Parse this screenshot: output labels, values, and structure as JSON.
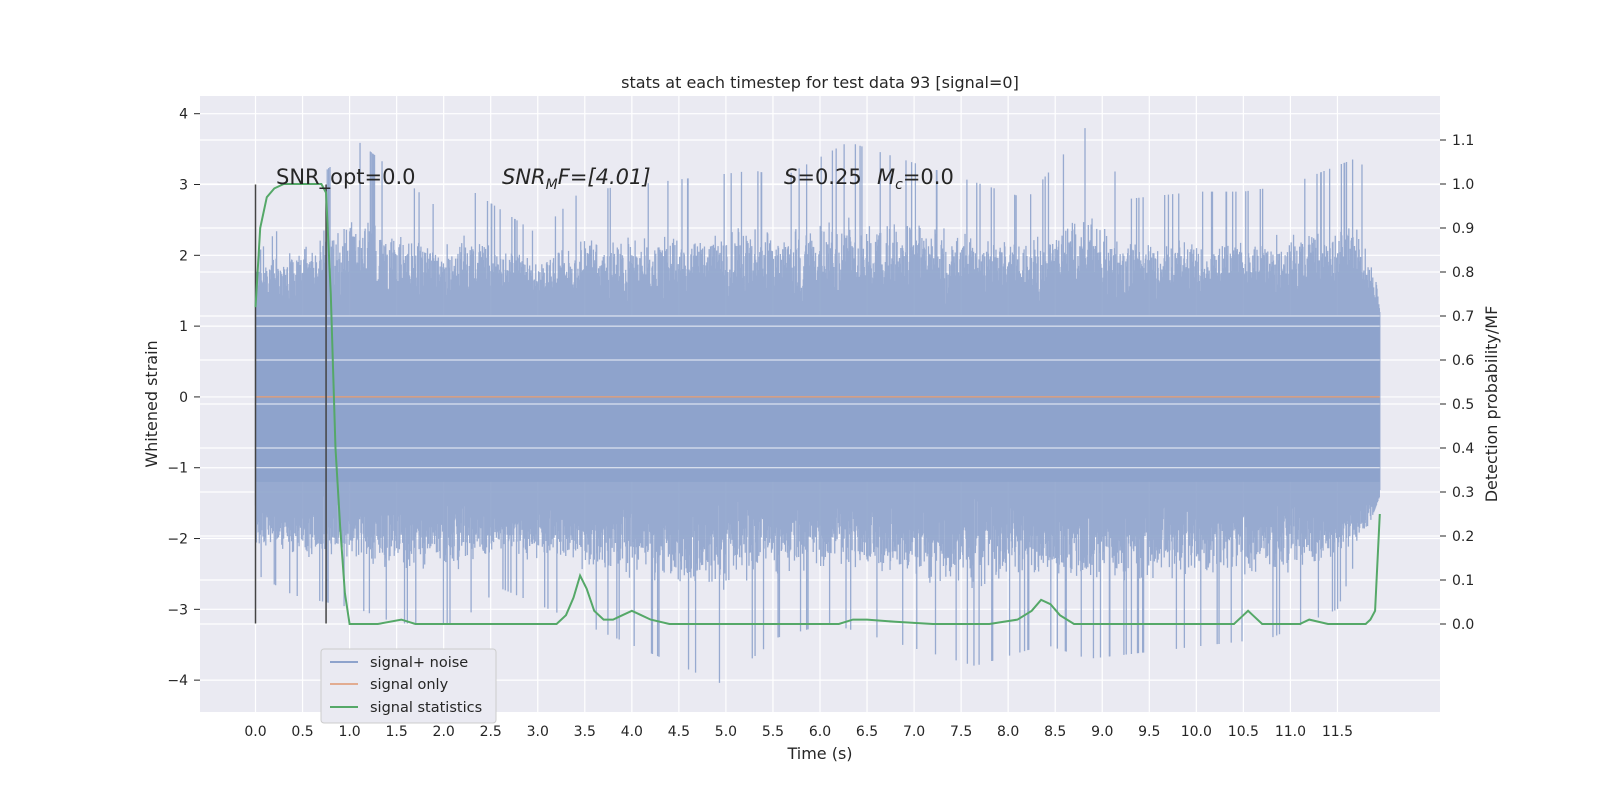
{
  "chart_data": {
    "type": "line",
    "title": "stats at each timestep for test data 93 [signal=0]",
    "xlabel": "Time (s)",
    "ylabel": "Whitened strain",
    "y2label": "Detection probability/MF",
    "xlim": [
      -0.59,
      12.59
    ],
    "ylim": [
      -4.45,
      4.25
    ],
    "y2lim": [
      -0.2,
      1.2
    ],
    "grid": true,
    "x_ticks": [
      "0.0",
      "0.5",
      "1.0",
      "1.5",
      "2.0",
      "2.5",
      "3.0",
      "3.5",
      "4.0",
      "4.5",
      "5.0",
      "5.5",
      "6.0",
      "6.5",
      "7.0",
      "7.5",
      "8.0",
      "8.5",
      "9.0",
      "9.5",
      "10.0",
      "10.5",
      "11.0",
      "11.5"
    ],
    "y_ticks": [
      "−4",
      "−3",
      "−2",
      "−1",
      "0",
      "1",
      "2",
      "3",
      "4"
    ],
    "y2_ticks": [
      "0.0",
      "0.1",
      "0.2",
      "0.3",
      "0.4",
      "0.5",
      "0.6",
      "0.7",
      "0.8",
      "0.9",
      "1.0",
      "1.1"
    ],
    "annotations": {
      "snr_opt": "SNR_opt=0.0",
      "snr_mf_base": "SNR",
      "snr_mf_sub": "M",
      "snr_mf_rest": "F=[4.01]",
      "s_base": "S",
      "s_rest": "=0.25",
      "mc_base": "M",
      "mc_sub": "c",
      "mc_rest": "=0.0"
    },
    "markers": [
      0.0,
      0.75
    ],
    "legend": {
      "position": "lower-left",
      "entries": [
        "signal+ noise",
        "signal only",
        "signal statistics"
      ]
    },
    "colors": {
      "noise": "#8ea3cc",
      "signal": "#dd8452",
      "stats": "#55a868",
      "background": "#eaeaf2",
      "marker": "#444444"
    },
    "series": [
      {
        "name": "signal+ noise",
        "kind": "dense-noise",
        "x_range": [
          0.0,
          11.95
        ],
        "envelope_upper": [
          [
            0.0,
            2.0
          ],
          [
            0.2,
            2.3
          ],
          [
            0.75,
            3.2
          ],
          [
            1.1,
            3.6
          ],
          [
            2.0,
            2.6
          ],
          [
            2.2,
            3.0
          ],
          [
            3.0,
            2.3
          ],
          [
            3.45,
            2.9
          ],
          [
            5.3,
            3.2
          ],
          [
            5.6,
            3.1
          ],
          [
            6.3,
            3.6
          ],
          [
            8.2,
            2.8
          ],
          [
            8.85,
            3.85
          ],
          [
            9.3,
            2.8
          ],
          [
            10.0,
            2.9
          ],
          [
            10.5,
            2.9
          ],
          [
            11.0,
            3.0
          ],
          [
            11.75,
            3.4
          ],
          [
            11.95,
            1.2
          ]
        ],
        "envelope_lower": [
          [
            0.0,
            -2.5
          ],
          [
            0.4,
            -2.8
          ],
          [
            1.1,
            -3.0
          ],
          [
            1.5,
            -3.2
          ],
          [
            2.15,
            -3.2
          ],
          [
            2.6,
            -2.7
          ],
          [
            4.95,
            -4.05
          ],
          [
            5.55,
            -3.4
          ],
          [
            6.1,
            -3.2
          ],
          [
            7.65,
            -3.8
          ],
          [
            8.4,
            -3.5
          ],
          [
            8.85,
            -3.7
          ],
          [
            10.5,
            -3.45
          ],
          [
            10.8,
            -3.4
          ],
          [
            11.5,
            -3.0
          ],
          [
            11.95,
            -1.4
          ]
        ]
      },
      {
        "name": "signal only",
        "x": [
          0.0,
          11.95
        ],
        "values": [
          0.0,
          0.0
        ]
      },
      {
        "name": "signal statistics",
        "axis": "right",
        "x": [
          0.0,
          0.05,
          0.12,
          0.2,
          0.3,
          0.5,
          0.7,
          0.75,
          0.8,
          0.85,
          0.9,
          0.95,
          1.0,
          1.1,
          1.3,
          1.55,
          1.7,
          1.9,
          2.5,
          3.0,
          3.2,
          3.3,
          3.38,
          3.45,
          3.52,
          3.6,
          3.7,
          3.8,
          3.9,
          4.0,
          4.1,
          4.2,
          4.4,
          4.6,
          5.0,
          5.5,
          5.7,
          5.9,
          6.2,
          6.35,
          6.5,
          6.8,
          7.2,
          7.5,
          7.8,
          8.1,
          8.25,
          8.35,
          8.45,
          8.55,
          8.7,
          8.9,
          9.5,
          10.0,
          10.4,
          10.5,
          10.55,
          10.6,
          10.7,
          10.9,
          11.1,
          11.2,
          11.4,
          11.6,
          11.8,
          11.85,
          11.9,
          11.95
        ],
        "values": [
          0.72,
          0.9,
          0.97,
          0.99,
          1.0,
          1.0,
          1.0,
          0.98,
          0.75,
          0.4,
          0.22,
          0.07,
          0.0,
          0.0,
          0.0,
          0.01,
          0.0,
          0.0,
          0.0,
          0.0,
          0.0,
          0.02,
          0.06,
          0.11,
          0.08,
          0.03,
          0.01,
          0.01,
          0.02,
          0.03,
          0.02,
          0.01,
          0.0,
          0.0,
          0.0,
          0.0,
          0.0,
          0.0,
          0.0,
          0.01,
          0.01,
          0.005,
          0.0,
          0.0,
          0.0,
          0.01,
          0.03,
          0.055,
          0.045,
          0.02,
          0.0,
          0.0,
          0.0,
          0.0,
          0.0,
          0.02,
          0.03,
          0.02,
          0.0,
          0.0,
          0.0,
          0.01,
          0.0,
          0.0,
          0.0,
          0.01,
          0.03,
          0.25
        ]
      }
    ]
  }
}
